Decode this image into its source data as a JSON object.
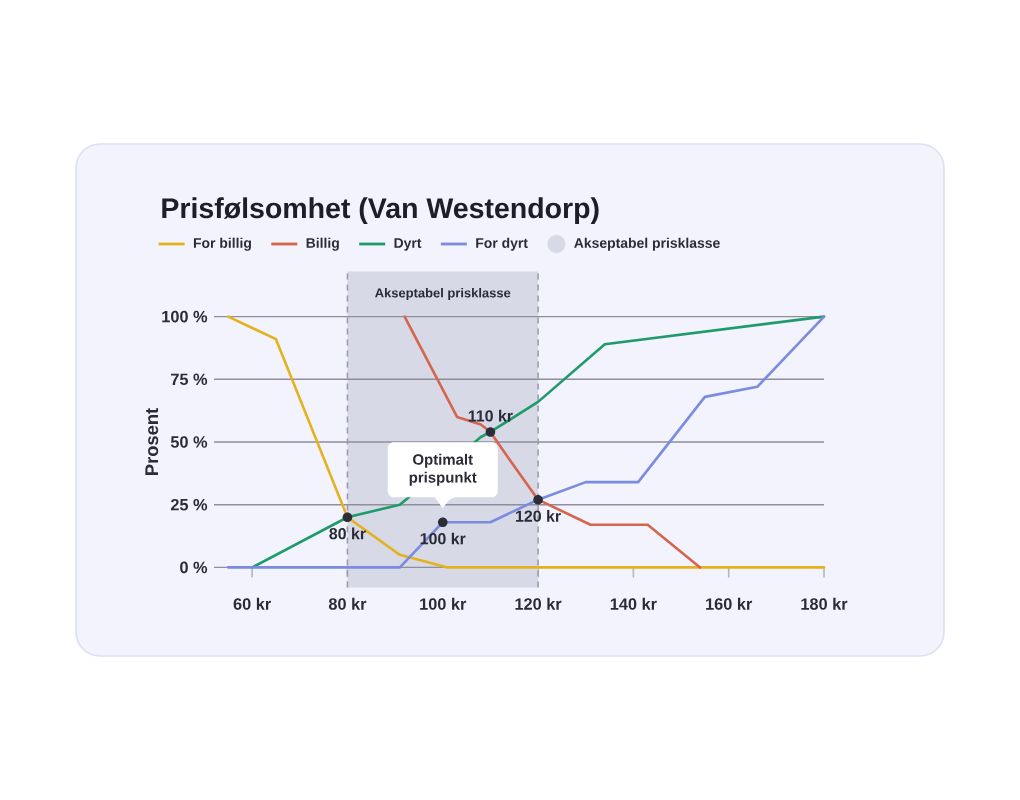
{
  "chart_data": {
    "type": "line",
    "title": "Prisfølsomhet (Van Westendorp)",
    "ylabel": "Prosent",
    "series": [
      {
        "name": "For billig",
        "color": "#e3b31d",
        "x": [
          55,
          65,
          80,
          91,
          101,
          180
        ],
        "values": [
          100,
          91,
          20,
          5,
          0,
          0
        ]
      },
      {
        "name": "Billig",
        "color": "#d5654c",
        "x": [
          92,
          103,
          108,
          110,
          114,
          120,
          131,
          143,
          154
        ],
        "values": [
          100,
          60,
          57,
          54,
          43,
          27,
          17,
          17,
          0
        ]
      },
      {
        "name": "Dyrt",
        "color": "#1f9b6b",
        "x": [
          60,
          80,
          91,
          108,
          110,
          120,
          134,
          180
        ],
        "values": [
          0,
          20,
          25,
          52,
          54,
          66,
          89,
          100
        ]
      },
      {
        "name": "For dyrt",
        "color": "#7a8be0",
        "x": [
          55,
          91,
          100,
          110,
          120,
          130,
          141,
          155,
          166,
          180
        ],
        "values": [
          0,
          0,
          18,
          18,
          27,
          34,
          34,
          68,
          72,
          100
        ]
      }
    ],
    "xlim": [
      52,
      180
    ],
    "xticks": [
      {
        "value": 60,
        "label": "60 kr"
      },
      {
        "value": 80,
        "label": "80 kr"
      },
      {
        "value": 100,
        "label": "100 kr"
      },
      {
        "value": 120,
        "label": "120 kr"
      },
      {
        "value": 140,
        "label": "140 kr"
      },
      {
        "value": 160,
        "label": "160 kr"
      },
      {
        "value": 180,
        "label": "180 kr"
      }
    ],
    "ylim": [
      0,
      100
    ],
    "yticks": [
      {
        "value": 0,
        "label": "0 %"
      },
      {
        "value": 25,
        "label": "25 %"
      },
      {
        "value": 50,
        "label": "50 %"
      },
      {
        "value": 75,
        "label": "75 %"
      },
      {
        "value": 100,
        "label": "100 %"
      }
    ],
    "grid": "y",
    "legend": "top",
    "bands": [
      {
        "axis": "x",
        "from": 80,
        "to": 120,
        "label": "Akseptabel prisklasse",
        "color": "#d7d9e6"
      }
    ],
    "ref_lines": [
      {
        "axis": "x",
        "value": 80,
        "color": "#9a9cad",
        "line_style": "dashed"
      },
      {
        "axis": "x",
        "value": 120,
        "color": "#9a9cad",
        "line_style": "dashed"
      }
    ],
    "annotations": [
      {
        "text": "80 kr",
        "x": 80,
        "y": 20
      },
      {
        "text": "100 kr",
        "x": 100,
        "y": 18
      },
      {
        "text": "110 kr",
        "x": 110,
        "y": 54
      },
      {
        "text": "120 kr",
        "x": 120,
        "y": 27
      },
      {
        "text": "Optimalt prispunkt",
        "x": 100,
        "y": 18
      }
    ]
  }
}
